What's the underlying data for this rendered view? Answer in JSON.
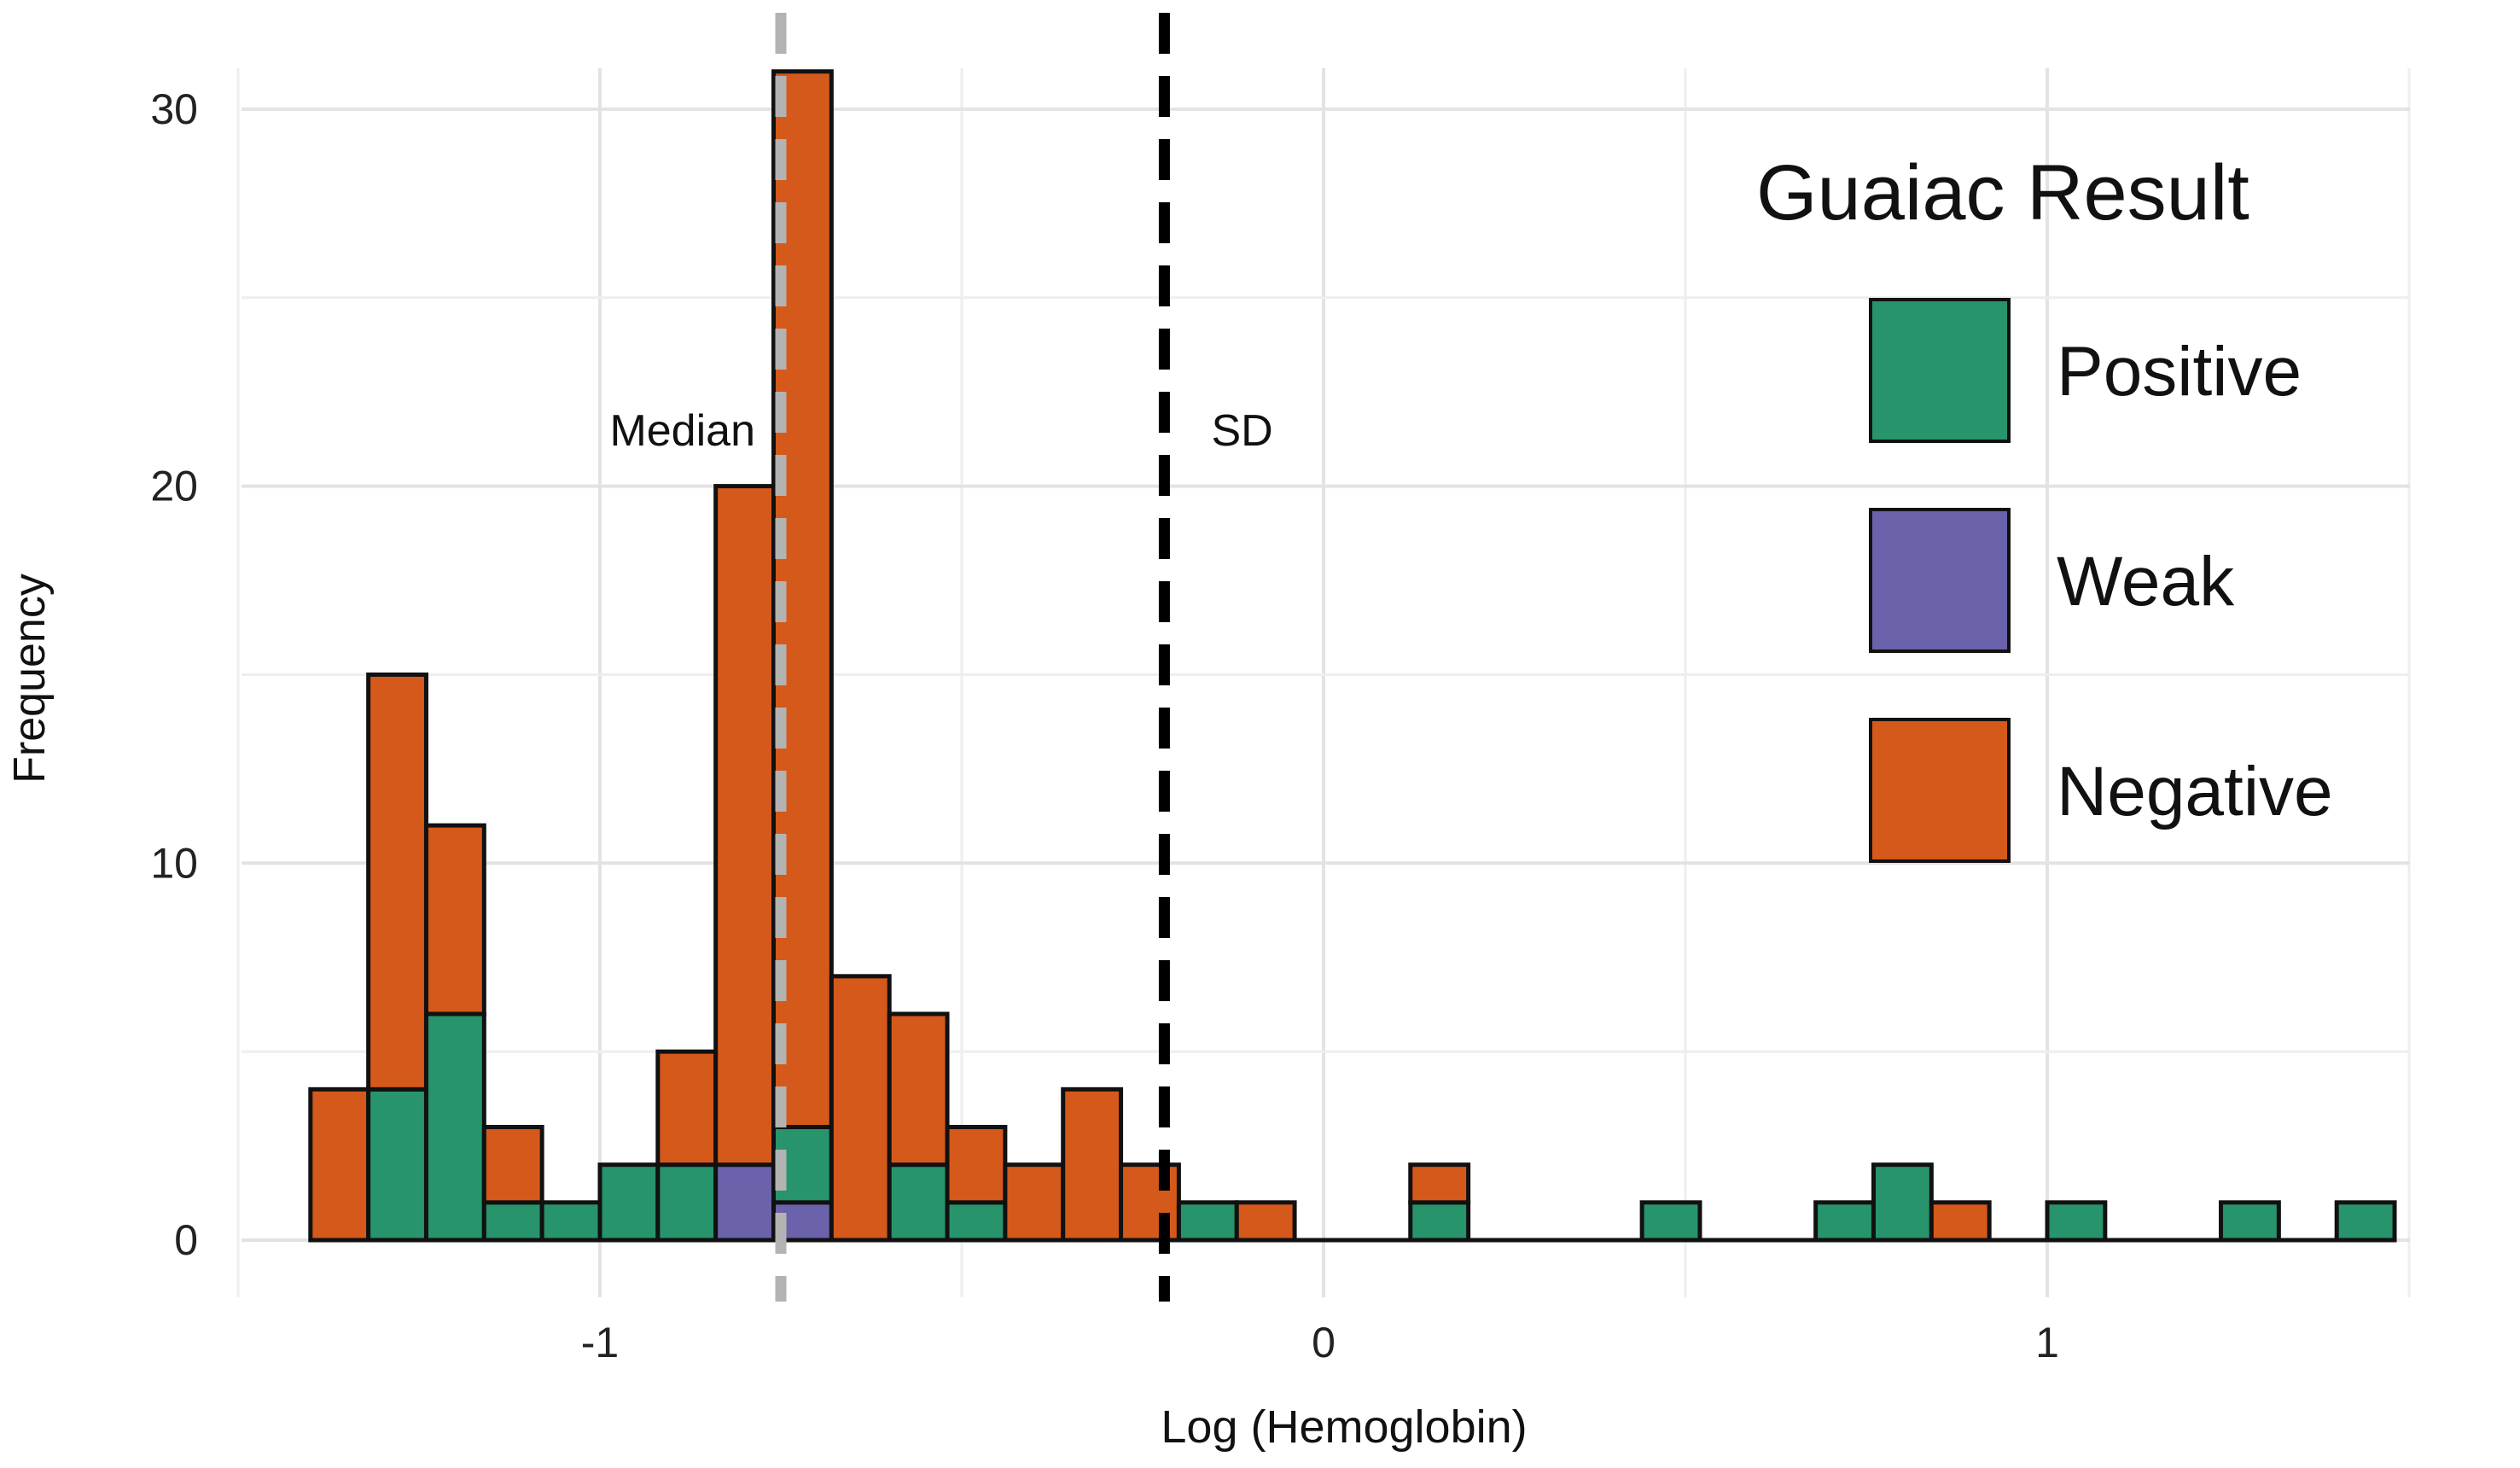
{
  "chart_data": {
    "type": "bar",
    "subtype": "stacked-histogram",
    "xlabel": "Log (Hemoglobin)",
    "ylabel": "Frequency",
    "xlim": [
      -1.5,
      1.55
    ],
    "ylim": [
      0,
      32
    ],
    "xticks": [
      -1,
      0,
      1
    ],
    "yticks": [
      0,
      10,
      20,
      30
    ],
    "grid": true,
    "bin_start": -1.4,
    "bin_width": 0.08,
    "legend": {
      "title": "Guaiac Result",
      "placement": "right"
    },
    "series": [
      {
        "name": "Weak",
        "color": "#6a62ab",
        "values": [
          0,
          0,
          0,
          0,
          0,
          0,
          0,
          2,
          1,
          0,
          0,
          0,
          0,
          0,
          0,
          0,
          0,
          0,
          0,
          0,
          0,
          0,
          0,
          0,
          0,
          0,
          0,
          0,
          0,
          0,
          0,
          0,
          0,
          0,
          0,
          0
        ]
      },
      {
        "name": "Positive",
        "color": "#27946c",
        "values": [
          0,
          4,
          6,
          1,
          1,
          2,
          2,
          0,
          2,
          0,
          2,
          1,
          0,
          0,
          0,
          1,
          0,
          0,
          0,
          1,
          0,
          0,
          0,
          1,
          0,
          0,
          1,
          2,
          0,
          0,
          1,
          0,
          0,
          1,
          0,
          1
        ]
      },
      {
        "name": "Negative",
        "color": "#d5591b",
        "values": [
          4,
          11,
          5,
          2,
          0,
          0,
          3,
          18,
          28,
          7,
          4,
          2,
          2,
          4,
          2,
          0,
          1,
          0,
          0,
          1,
          0,
          0,
          0,
          0,
          0,
          0,
          0,
          0,
          1,
          0,
          0,
          0,
          0,
          0,
          0,
          0
        ]
      }
    ],
    "legend_order": [
      "Positive",
      "Weak",
      "Negative"
    ],
    "reference_lines": [
      {
        "label": "Median",
        "x": -0.75,
        "color": "#b3b3b3",
        "style": "dashed"
      },
      {
        "label": "SD",
        "x": -0.22,
        "color": "#000000",
        "style": "dashed"
      }
    ]
  }
}
